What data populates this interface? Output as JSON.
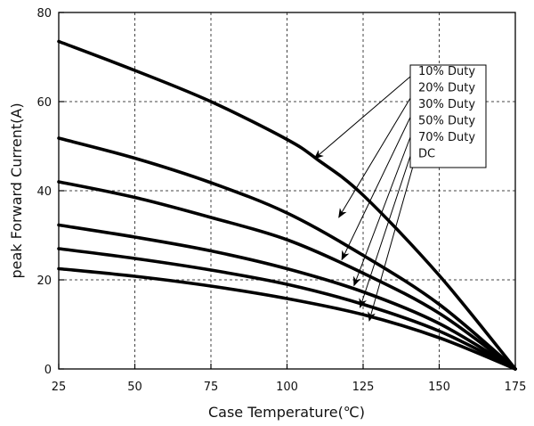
{
  "chart_data": {
    "type": "line",
    "title": "",
    "xlabel": "Case Temperature(℃)",
    "ylabel": "peak Forward Current(A)",
    "xlim": [
      25,
      175
    ],
    "ylim": [
      0,
      80
    ],
    "x_ticks": [
      "25",
      "50",
      "75",
      "100",
      "125",
      "150",
      "175"
    ],
    "y_ticks": [
      "0",
      "20",
      "40",
      "60",
      "80"
    ],
    "grid": true,
    "grid_style": "dashed",
    "legend_position": "top-right",
    "line_color": "#000000",
    "series": [
      {
        "name": "10% Duty",
        "x": [
          25,
          50,
          75,
          100,
          110,
          125,
          150,
          175
        ],
        "y": [
          73.5,
          67,
          60,
          51.5,
          47,
          39,
          21,
          0
        ]
      },
      {
        "name": "20% Duty",
        "x": [
          25,
          50,
          75,
          100,
          125,
          150,
          175
        ],
        "y": [
          51.8,
          47.3,
          41.8,
          35,
          25.5,
          14.5,
          0
        ]
      },
      {
        "name": "30% Duty",
        "x": [
          25,
          50,
          75,
          100,
          125,
          150,
          175
        ],
        "y": [
          42,
          38.5,
          34,
          29,
          21.5,
          12.5,
          0
        ]
      },
      {
        "name": "50% Duty",
        "x": [
          25,
          50,
          75,
          100,
          125,
          150,
          175
        ],
        "y": [
          32.3,
          29.6,
          26.5,
          22.5,
          17.3,
          10.2,
          0
        ]
      },
      {
        "name": "70% Duty",
        "x": [
          25,
          50,
          75,
          100,
          125,
          150,
          175
        ],
        "y": [
          27,
          24.8,
          22.2,
          19,
          14.5,
          8.5,
          0
        ]
      },
      {
        "name": "DC",
        "x": [
          25,
          50,
          75,
          100,
          125,
          150,
          175
        ],
        "y": [
          22.5,
          20.8,
          18.6,
          15.8,
          12.2,
          7,
          0
        ]
      }
    ],
    "annotations": [
      {
        "legend": "10% Duty",
        "target": [
          109,
          47.2
        ]
      },
      {
        "legend": "20% Duty",
        "target": [
          117,
          34
        ]
      },
      {
        "legend": "30% Duty",
        "target": [
          118,
          24.5
        ]
      },
      {
        "legend": "50% Duty",
        "target": [
          122,
          18.7
        ]
      },
      {
        "legend": "70% Duty",
        "target": [
          124,
          13.8
        ]
      },
      {
        "legend": "DC",
        "target": [
          127,
          10.8
        ]
      }
    ]
  }
}
